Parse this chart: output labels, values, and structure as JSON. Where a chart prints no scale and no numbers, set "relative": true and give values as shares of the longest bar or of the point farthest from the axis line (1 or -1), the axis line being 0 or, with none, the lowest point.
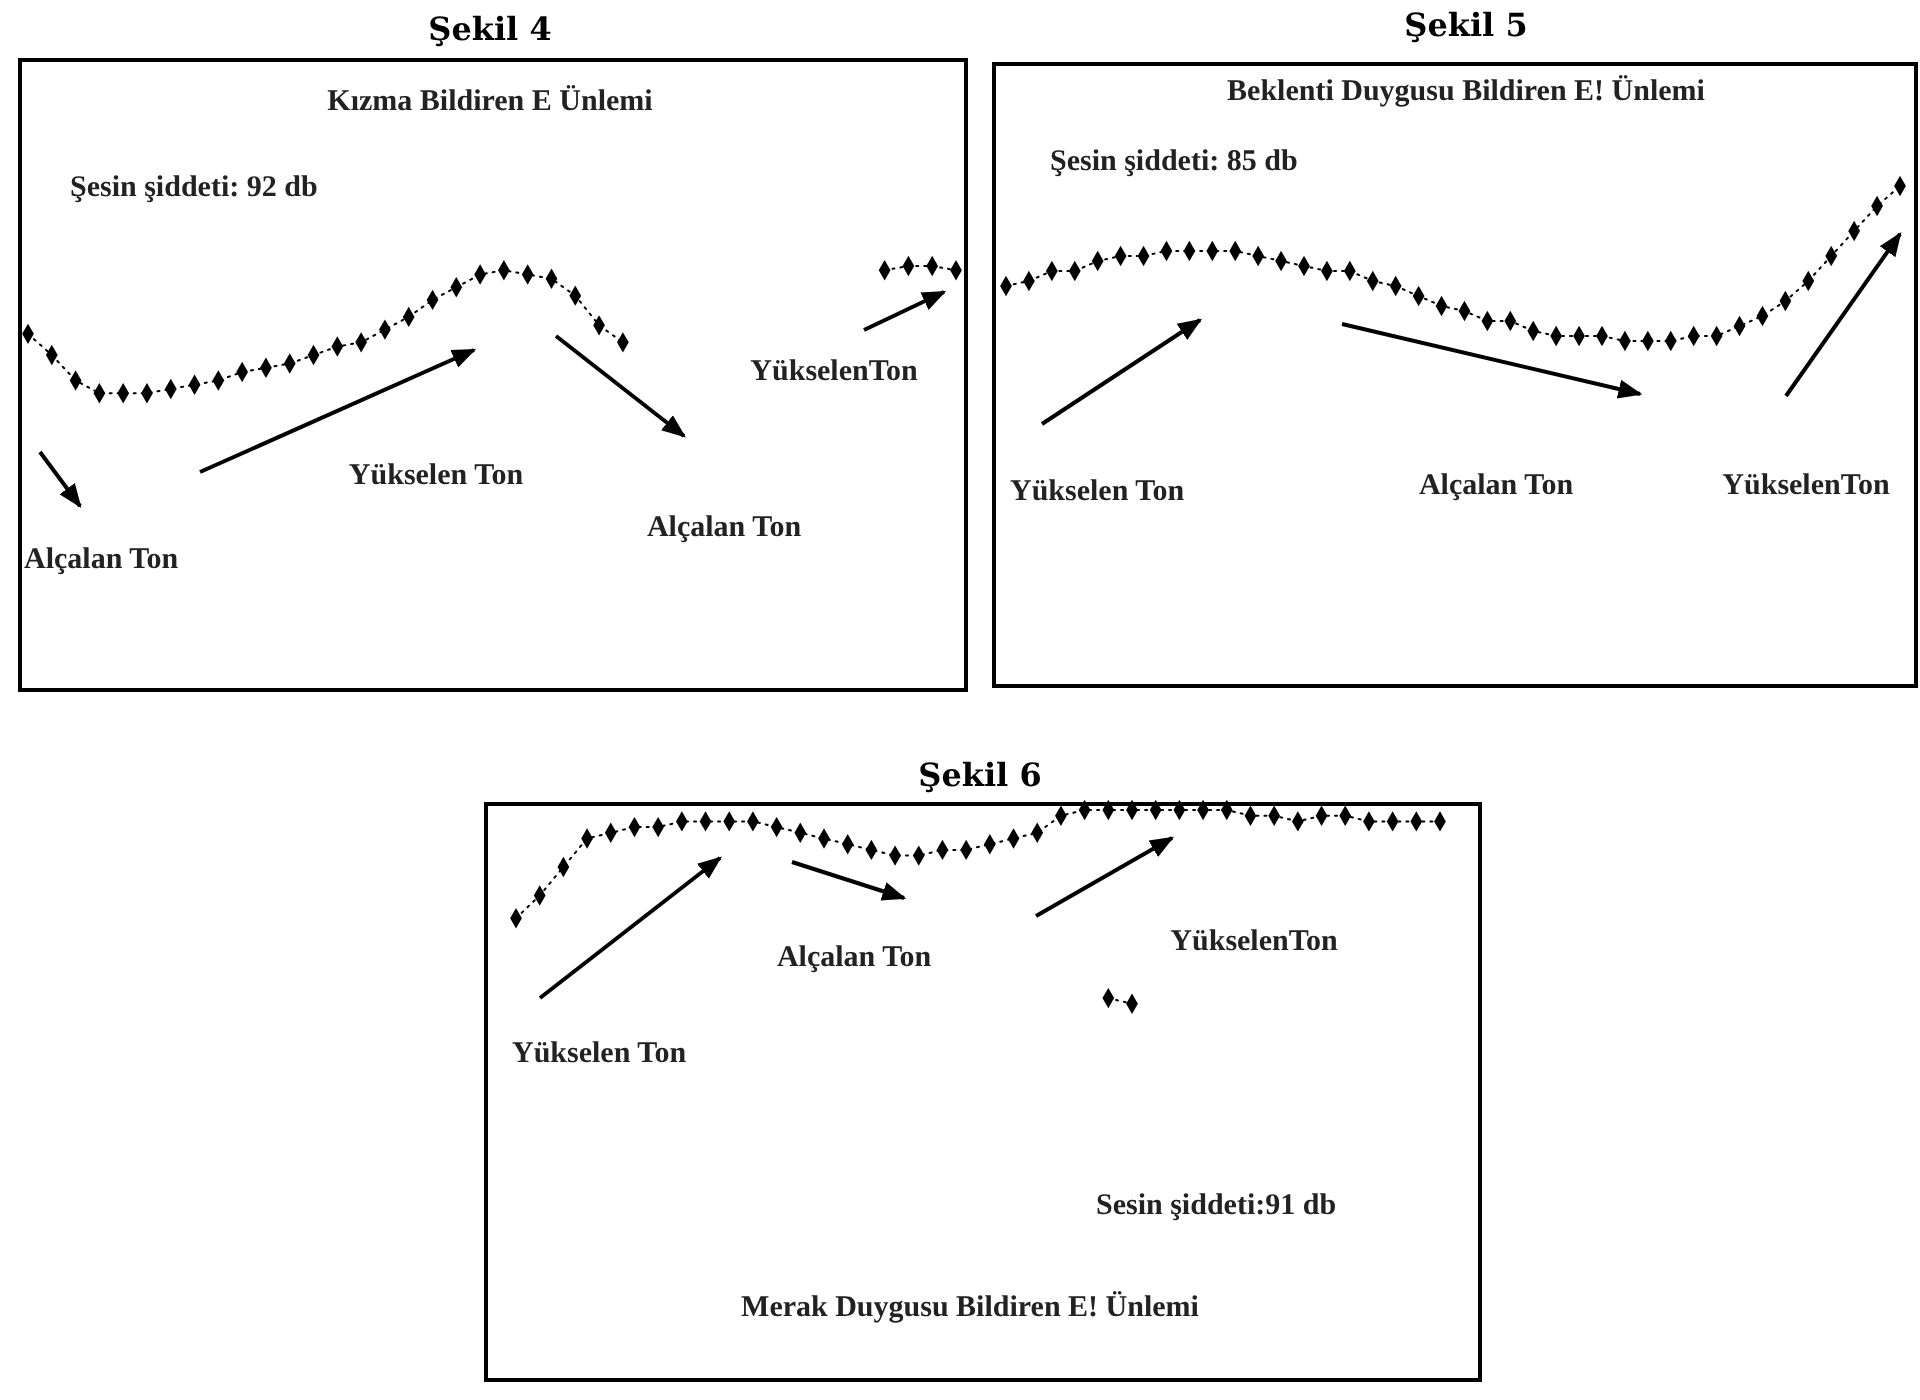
{
  "chart_data": [
    {
      "type": "line",
      "title": "Şekil 4",
      "subtitle": "Kızma Bildiren E Ünlemi",
      "relative": true,
      "marker": "diamond",
      "line_style": "dotted",
      "categories": [
        null,
        null,
        null,
        null,
        null,
        null,
        null,
        null,
        null,
        null,
        null,
        null,
        null,
        null,
        null,
        null,
        null,
        null,
        null,
        null,
        null,
        null,
        null,
        null,
        null,
        null,
        null,
        null,
        null,
        null,
        null,
        null,
        null,
        null,
        null,
        null,
        null,
        null,
        null,
        null
      ],
      "series": [
        {
          "color": "#000000",
          "values": [
            0.84,
            0.79,
            0.73,
            0.7,
            0.7,
            0.7,
            0.71,
            0.72,
            0.73,
            0.75,
            0.76,
            0.77,
            0.79,
            0.81,
            0.82,
            0.85,
            0.88,
            0.92,
            0.95,
            0.98,
            0.99,
            0.98,
            0.97,
            0.93,
            0.86,
            0.82,
            null,
            null,
            null,
            null,
            null,
            null,
            null,
            null,
            null,
            null,
            null,
            null,
            null,
            null
          ]
        },
        {
          "color": "#000000",
          "values": [
            null,
            null,
            null,
            null,
            null,
            null,
            null,
            null,
            null,
            null,
            null,
            null,
            null,
            null,
            null,
            null,
            null,
            null,
            null,
            null,
            null,
            null,
            null,
            null,
            null,
            null,
            null,
            null,
            null,
            null,
            null,
            null,
            null,
            null,
            null,
            null,
            0.99,
            1,
            1,
            0.99
          ]
        }
      ],
      "annotations": [
        "Şesin şiddeti: 92 db",
        "Alçalan Ton",
        "Yükselen Ton",
        "Alçalan Ton",
        "YükselenTon"
      ]
    },
    {
      "type": "line",
      "title": "Şekil 5",
      "subtitle": "Beklenti Duygusu Bildiren E! Ünlemi",
      "relative": true,
      "marker": "diamond",
      "line_style": "dotted",
      "categories": [
        null,
        null,
        null,
        null,
        null,
        null,
        null,
        null,
        null,
        null,
        null,
        null,
        null,
        null,
        null,
        null,
        null,
        null,
        null,
        null,
        null,
        null,
        null,
        null,
        null,
        null,
        null,
        null,
        null,
        null,
        null,
        null,
        null,
        null,
        null,
        null,
        null,
        null,
        null,
        null
      ],
      "series": [
        {
          "color": "#000000",
          "values": [
            0.8,
            0.81,
            0.83,
            0.83,
            0.85,
            0.86,
            0.86,
            0.87,
            0.87,
            0.87,
            0.87,
            0.86,
            0.85,
            0.84,
            0.83,
            0.83,
            0.81,
            0.8,
            0.78,
            0.76,
            0.75,
            0.73,
            0.73,
            0.71,
            0.7,
            0.7,
            0.7,
            0.69,
            0.69,
            0.69,
            0.7,
            0.7,
            0.72,
            0.74,
            0.77,
            0.81,
            0.86,
            0.91,
            0.96,
            1
          ]
        }
      ],
      "annotations": [
        "Şesin şiddeti: 85 db",
        "Yükselen Ton",
        "Alçalan Ton",
        "YükselenTon"
      ]
    },
    {
      "type": "line",
      "title": "Şekil 6",
      "subtitle": "Merak Duygusu Bildiren E! Ünlemi",
      "relative": true,
      "marker": "diamond",
      "line_style": "dotted",
      "categories": [
        null,
        null,
        null,
        null,
        null,
        null,
        null,
        null,
        null,
        null,
        null,
        null,
        null,
        null,
        null,
        null,
        null,
        null,
        null,
        null,
        null,
        null,
        null,
        null,
        null,
        null,
        null,
        null,
        null,
        null,
        null,
        null,
        null,
        null,
        null,
        null,
        null,
        null,
        null,
        null
      ],
      "series": [
        {
          "color": "#000000",
          "values": [
            0.81,
            0.85,
            0.9,
            0.95,
            0.96,
            0.97,
            0.97,
            0.98,
            0.98,
            0.98,
            0.98,
            0.97,
            0.96,
            0.95,
            0.94,
            0.93,
            0.92,
            0.92,
            0.93,
            0.93,
            0.94,
            0.95,
            0.96,
            0.99,
            1,
            1,
            1,
            1,
            1,
            1,
            1,
            0.99,
            0.99,
            0.98,
            0.99,
            0.99,
            0.98,
            0.98,
            0.98,
            0.98
          ]
        },
        {
          "color": "#000000",
          "values": [
            null,
            null,
            null,
            null,
            null,
            null,
            null,
            null,
            null,
            null,
            null,
            null,
            null,
            null,
            null,
            null,
            null,
            null,
            null,
            null,
            null,
            null,
            null,
            null,
            null,
            0.67,
            0.66,
            null,
            null,
            null,
            null,
            null,
            null,
            null,
            null,
            null,
            null,
            null,
            null,
            null
          ]
        }
      ],
      "annotations": [
        "Yükselen Ton",
        "Alçalan Ton",
        "YükselenTon",
        "Sesin şiddeti:91 db"
      ]
    }
  ]
}
